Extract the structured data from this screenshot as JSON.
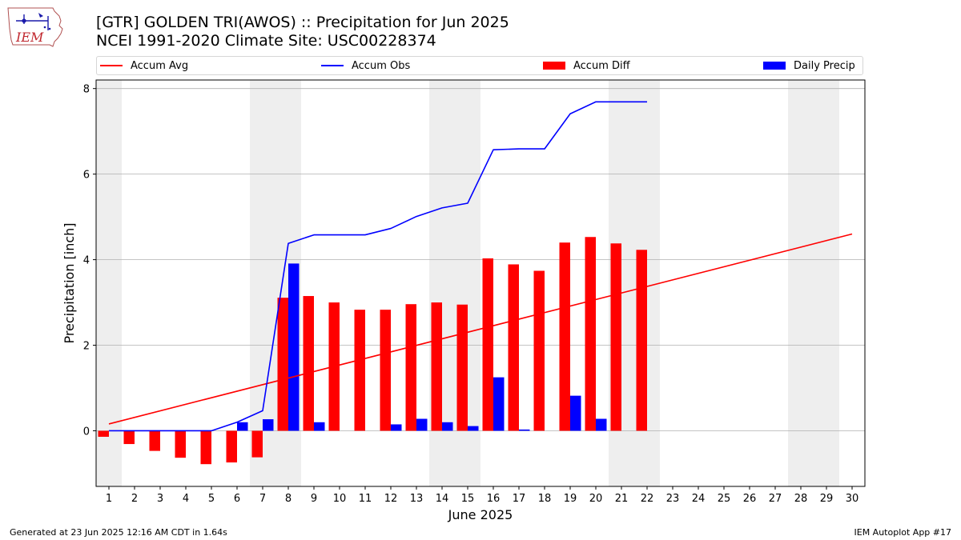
{
  "header": {
    "title_line1": "[GTR] GOLDEN TRI(AWOS) :: Precipitation for Jun 2025",
    "title_line2": "NCEI 1991-2020 Climate Site: USC00228374"
  },
  "logo": {
    "text": "IEM"
  },
  "footer": {
    "generated": "Generated at 23 Jun 2025 12:16 AM CDT in 1.64s",
    "app": "IEM Autoplot App #17"
  },
  "colors": {
    "accum_avg": "#ff0000",
    "accum_obs": "#0000ff",
    "accum_diff": "#ff0000",
    "daily_precip": "#0000ff",
    "weekend_shade": "#eeeeee",
    "grid": "#b0b0b0"
  },
  "chart_data": {
    "type": "bar",
    "xlabel": "June 2025",
    "ylabel": "Precipitation [inch]",
    "ylim": [
      -1.3,
      8.2
    ],
    "yticks": [
      0,
      2,
      4,
      6,
      8
    ],
    "days": [
      1,
      2,
      3,
      4,
      5,
      6,
      7,
      8,
      9,
      10,
      11,
      12,
      13,
      14,
      15,
      16,
      17,
      18,
      19,
      20,
      21,
      22,
      23,
      24,
      25,
      26,
      27,
      28,
      29,
      30
    ],
    "weekend_spans": [
      [
        1,
        1
      ],
      [
        7,
        8
      ],
      [
        14,
        15
      ],
      [
        21,
        22
      ],
      [
        28,
        29
      ]
    ],
    "legend_position": "top, above plot",
    "series": [
      {
        "name": "Accum Avg",
        "kind": "line",
        "x": [
          1,
          30
        ],
        "values": [
          0.16,
          4.6
        ]
      },
      {
        "name": "Accum Obs",
        "kind": "line",
        "x": [
          1,
          2,
          3,
          4,
          5,
          6,
          7,
          8,
          9,
          10,
          11,
          12,
          13,
          14,
          15,
          16,
          17,
          18,
          19,
          20,
          21,
          22
        ],
        "values": [
          0.0,
          0.0,
          0.0,
          0.0,
          0.0,
          0.2,
          0.47,
          4.38,
          4.58,
          4.58,
          4.58,
          4.73,
          5.01,
          5.21,
          5.32,
          6.57,
          6.59,
          6.59,
          7.41,
          7.69,
          7.69,
          7.69
        ]
      },
      {
        "name": "Accum Diff",
        "kind": "bar",
        "x": [
          1,
          2,
          3,
          4,
          5,
          6,
          7,
          8,
          9,
          10,
          11,
          12,
          13,
          14,
          15,
          16,
          17,
          18,
          19,
          20,
          21,
          22
        ],
        "values": [
          -0.14,
          -0.31,
          -0.47,
          -0.63,
          -0.78,
          -0.74,
          -0.62,
          3.11,
          3.15,
          3.0,
          2.83,
          2.83,
          2.96,
          3.0,
          2.95,
          4.03,
          3.89,
          3.74,
          4.4,
          4.53,
          4.38,
          4.23
        ]
      },
      {
        "name": "Daily Precip",
        "kind": "bar",
        "x": [
          1,
          2,
          3,
          4,
          5,
          6,
          7,
          8,
          9,
          10,
          11,
          12,
          13,
          14,
          15,
          16,
          17,
          18,
          19,
          20,
          21,
          22
        ],
        "values": [
          0,
          0,
          0,
          0,
          0,
          0.2,
          0.27,
          3.91,
          0.2,
          0,
          0,
          0.15,
          0.28,
          0.2,
          0.11,
          1.25,
          0.03,
          0,
          0.82,
          0.28,
          0,
          0
        ]
      }
    ]
  }
}
